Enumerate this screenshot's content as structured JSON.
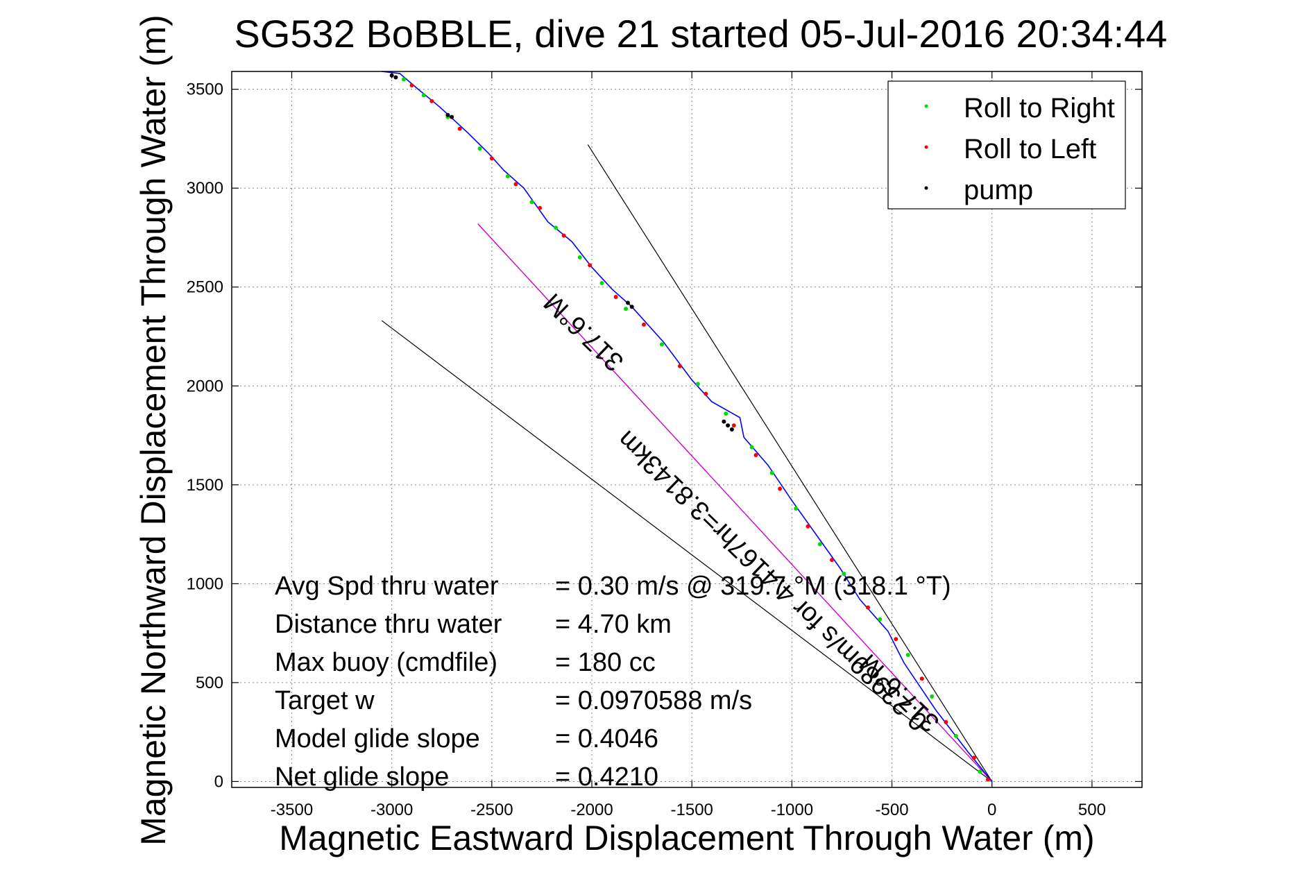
{
  "chart_data": {
    "type": "line",
    "title": "SG532 BoBBLE, dive 21 started 05-Jul-2016 20:34:44",
    "xlabel": "Magnetic Eastward Displacement Through Water (m)",
    "ylabel": "Magnetic Northward Displacement Through Water (m)",
    "xlim": [
      -3800,
      750
    ],
    "ylim": [
      -30,
      3590
    ],
    "xticks": [
      -3500,
      -3000,
      -2500,
      -2000,
      -1500,
      -1000,
      -500,
      0,
      500
    ],
    "xtick_labels": [
      "-3500",
      "-3000",
      "-2500",
      "-2000",
      "-1500",
      "-1000",
      "-500",
      "0",
      "500"
    ],
    "yticks": [
      0,
      500,
      1000,
      1500,
      2000,
      2500,
      3000,
      3500
    ],
    "ytick_labels": [
      "0",
      "500",
      "1000",
      "1500",
      "2000",
      "2500",
      "3000",
      "3500"
    ],
    "grid": true,
    "legend_position": "top-right",
    "legend": [
      {
        "label": "Roll to Right",
        "color": "#00dd00"
      },
      {
        "label": "Roll to Left",
        "color": "#ff0000"
      },
      {
        "label": "pump",
        "color": "#000000"
      }
    ],
    "track": {
      "color": "#0000ff",
      "x": [
        0,
        -120,
        -280,
        -440,
        -520,
        -660,
        -760,
        -880,
        -1000,
        -1120,
        -1240,
        -1260,
        -1400,
        -1500,
        -1640,
        -1800,
        -1900,
        -2000,
        -2100,
        -2220,
        -2340,
        -2440,
        -2520,
        -2620,
        -2760,
        -2880,
        -2960,
        -3050
      ],
      "y": [
        0,
        150,
        360,
        600,
        760,
        920,
        1080,
        1250,
        1420,
        1600,
        1740,
        1840,
        1920,
        2030,
        2220,
        2400,
        2490,
        2600,
        2730,
        2830,
        3000,
        3090,
        3180,
        3280,
        3410,
        3510,
        3580,
        3640
      ]
    },
    "roll_right_points": {
      "x": [
        -60,
        -180,
        -300,
        -420,
        -560,
        -740,
        -860,
        -980,
        -1100,
        -1200,
        -1330,
        -1470,
        -1650,
        -1830,
        -1950,
        -2060,
        -2180,
        -2300,
        -2420,
        -2560,
        -2720,
        -2840,
        -2940
      ],
      "y": [
        50,
        230,
        430,
        640,
        820,
        1050,
        1200,
        1380,
        1560,
        1690,
        1860,
        2010,
        2210,
        2390,
        2520,
        2650,
        2800,
        2930,
        3060,
        3200,
        3360,
        3470,
        3550
      ]
    },
    "roll_left_points": {
      "x": [
        -20,
        -90,
        -230,
        -350,
        -480,
        -620,
        -800,
        -920,
        -1060,
        -1180,
        -1290,
        -1430,
        -1560,
        -1740,
        -1880,
        -2010,
        -2140,
        -2260,
        -2380,
        -2500,
        -2660,
        -2800,
        -2900
      ],
      "y": [
        10,
        120,
        300,
        520,
        720,
        880,
        1120,
        1290,
        1480,
        1650,
        1800,
        1960,
        2100,
        2310,
        2450,
        2610,
        2760,
        2900,
        3020,
        3150,
        3300,
        3440,
        3520
      ]
    },
    "pump_points": {
      "x": [
        -1300,
        -1320,
        -1340,
        -1800,
        -1820,
        -2700,
        -2720,
        -2980,
        -3000
      ],
      "y": [
        1780,
        1800,
        1820,
        2400,
        2420,
        3360,
        3370,
        3560,
        3570
      ]
    },
    "heading_line": {
      "color": "#cc00cc",
      "label": "0.23989m/s for 4.4167hr=3.8143km",
      "x": [
        0,
        -2570
      ],
      "y": [
        0,
        2820
      ]
    },
    "bounding_lines": [
      {
        "color": "#000000",
        "x": [
          0,
          -2020
        ],
        "y": [
          0,
          3220
        ]
      },
      {
        "color": "#000000",
        "x": [
          0,
          -3050
        ],
        "y": [
          0,
          2330
        ]
      }
    ],
    "heading_labels": [
      {
        "text": "317.6°M"
      },
      {
        "text": "317.6°M"
      }
    ],
    "stats": [
      {
        "label": "Avg Spd thru water",
        "value": "=  0.30 m/s @ 319.7 °M (318.1 °T)"
      },
      {
        "label": "Distance thru water",
        "value": "=  4.70 km"
      },
      {
        "label": "Max buoy (cmdfile)",
        "value": "= 180 cc"
      },
      {
        "label": "Target w",
        "value": "= 0.0970588 m/s"
      },
      {
        "label": "Model glide slope",
        "value": "= 0.4046"
      },
      {
        "label": "Net glide slope",
        "value": "= 0.4210"
      }
    ]
  }
}
